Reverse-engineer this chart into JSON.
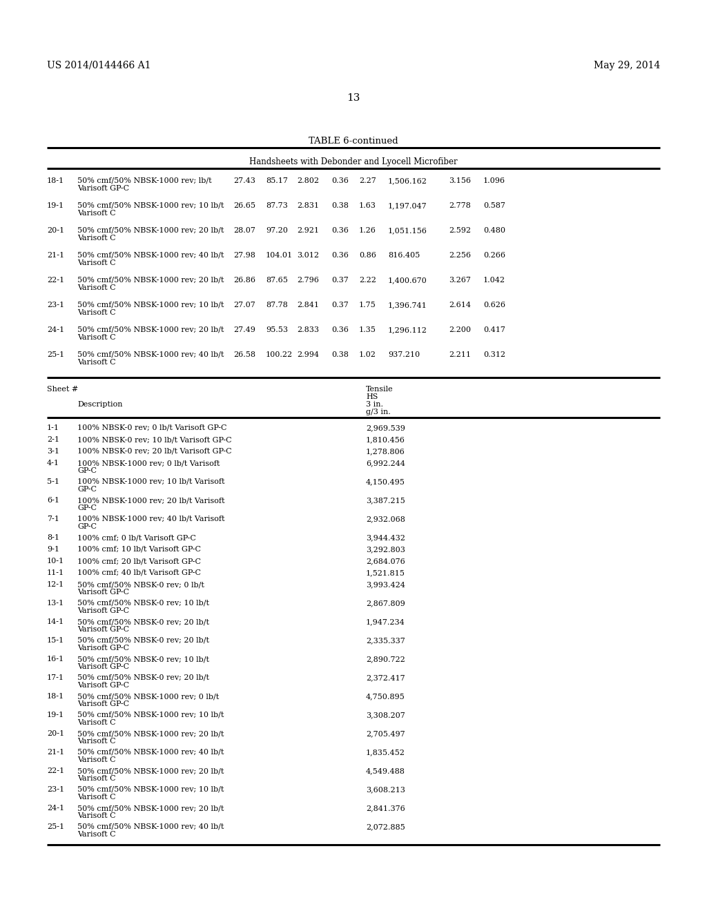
{
  "header_left": "US 2014/0144466 A1",
  "header_right": "May 29, 2014",
  "page_number": "13",
  "table_title": "TABLE 6-continued",
  "section_header": "Handsheets with Debonder and Lyocell Microfiber",
  "top_table_rows": [
    {
      "sheet": "18-1",
      "desc_line1": "50% cmf/50% NBSK-1000 rev; lb/t",
      "desc_line2": "Varisoft GP-C",
      "v1": "27.43",
      "v2": "85.17",
      "v3": "2.802",
      "v4": "0.36",
      "v5": "2.27",
      "v6": "1,506.162",
      "v7": "3.156",
      "v8": "1.096"
    },
    {
      "sheet": "19-1",
      "desc_line1": "50% cmf/50% NBSK-1000 rev; 10 lb/t",
      "desc_line2": "Varisoft C",
      "v1": "26.65",
      "v2": "87.73",
      "v3": "2.831",
      "v4": "0.38",
      "v5": "1.63",
      "v6": "1,197.047",
      "v7": "2.778",
      "v8": "0.587"
    },
    {
      "sheet": "20-1",
      "desc_line1": "50% cmf/50% NBSK-1000 rev; 20 lb/t",
      "desc_line2": "Varisoft C",
      "v1": "28.07",
      "v2": "97.20",
      "v3": "2.921",
      "v4": "0.36",
      "v5": "1.26",
      "v6": "1,051.156",
      "v7": "2.592",
      "v8": "0.480"
    },
    {
      "sheet": "21-1",
      "desc_line1": "50% cmf/50% NBSK-1000 rev; 40 lb/t",
      "desc_line2": "Varisoft C",
      "v1": "27.98",
      "v2": "104.01",
      "v3": "3.012",
      "v4": "0.36",
      "v5": "0.86",
      "v6": "816.405",
      "v7": "2.256",
      "v8": "0.266"
    },
    {
      "sheet": "22-1",
      "desc_line1": "50% cmf/50% NBSK-1000 rev; 20 lb/t",
      "desc_line2": "Varisoft C",
      "v1": "26.86",
      "v2": "87.65",
      "v3": "2.796",
      "v4": "0.37",
      "v5": "2.22",
      "v6": "1,400.670",
      "v7": "3.267",
      "v8": "1.042"
    },
    {
      "sheet": "23-1",
      "desc_line1": "50% cmf/50% NBSK-1000 rev; 10 lb/t",
      "desc_line2": "Varisoft C",
      "v1": "27.07",
      "v2": "87.78",
      "v3": "2.841",
      "v4": "0.37",
      "v5": "1.75",
      "v6": "1,396.741",
      "v7": "2.614",
      "v8": "0.626"
    },
    {
      "sheet": "24-1",
      "desc_line1": "50% cmf/50% NBSK-1000 rev; 20 lb/t",
      "desc_line2": "Varisoft C",
      "v1": "27.49",
      "v2": "95.53",
      "v3": "2.833",
      "v4": "0.36",
      "v5": "1.35",
      "v6": "1,296.112",
      "v7": "2.200",
      "v8": "0.417"
    },
    {
      "sheet": "25-1",
      "desc_line1": "50% cmf/50% NBSK-1000 rev; 40 lb/t",
      "desc_line2": "Varisoft C",
      "v1": "26.58",
      "v2": "100.22",
      "v3": "2.994",
      "v4": "0.38",
      "v5": "1.02",
      "v6": "937.210",
      "v7": "2.211",
      "v8": "0.312"
    }
  ],
  "bottom_table_rows": [
    {
      "sheet": "1-1",
      "desc_line1": "100% NBSK-0 rev; 0 lb/t Varisoft GP-C",
      "desc_line2": "",
      "v1": "2,969.539"
    },
    {
      "sheet": "2-1",
      "desc_line1": "100% NBSK-0 rev; 10 lb/t Varisoft GP-C",
      "desc_line2": "",
      "v1": "1,810.456"
    },
    {
      "sheet": "3-1",
      "desc_line1": "100% NBSK-0 rev; 20 lb/t Varisoft GP-C",
      "desc_line2": "",
      "v1": "1,278.806"
    },
    {
      "sheet": "4-1",
      "desc_line1": "100% NBSK-1000 rev; 0 lb/t Varisoft",
      "desc_line2": "GP-C",
      "v1": "6,992.244"
    },
    {
      "sheet": "5-1",
      "desc_line1": "100% NBSK-1000 rev; 10 lb/t Varisoft",
      "desc_line2": "GP-C",
      "v1": "4,150.495"
    },
    {
      "sheet": "6-1",
      "desc_line1": "100% NBSK-1000 rev; 20 lb/t Varisoft",
      "desc_line2": "GP-C",
      "v1": "3,387.215"
    },
    {
      "sheet": "7-1",
      "desc_line1": "100% NBSK-1000 rev; 40 lb/t Varisoft",
      "desc_line2": "GP-C",
      "v1": "2,932.068"
    },
    {
      "sheet": "8-1",
      "desc_line1": "100% cmf; 0 lb/t Varisoft GP-C",
      "desc_line2": "",
      "v1": "3,944.432"
    },
    {
      "sheet": "9-1",
      "desc_line1": "100% cmf; 10 lb/t Varisoft GP-C",
      "desc_line2": "",
      "v1": "3,292.803"
    },
    {
      "sheet": "10-1",
      "desc_line1": "100% cmf; 20 lb/t Varisoft GP-C",
      "desc_line2": "",
      "v1": "2,684.076"
    },
    {
      "sheet": "11-1",
      "desc_line1": "100% cmf; 40 lb/t Varisoft GP-C",
      "desc_line2": "",
      "v1": "1,521.815"
    },
    {
      "sheet": "12-1",
      "desc_line1": "50% cmf/50% NBSK-0 rev; 0 lb/t",
      "desc_line2": "Varisoft GP-C",
      "v1": "3,993.424"
    },
    {
      "sheet": "13-1",
      "desc_line1": "50% cmf/50% NBSK-0 rev; 10 lb/t",
      "desc_line2": "Varisoft GP-C",
      "v1": "2,867.809"
    },
    {
      "sheet": "14-1",
      "desc_line1": "50% cmf/50% NBSK-0 rev; 20 lb/t",
      "desc_line2": "Varisoft GP-C",
      "v1": "1,947.234"
    },
    {
      "sheet": "15-1",
      "desc_line1": "50% cmf/50% NBSK-0 rev; 20 lb/t",
      "desc_line2": "Varisoft GP-C",
      "v1": "2,335.337"
    },
    {
      "sheet": "16-1",
      "desc_line1": "50% cmf/50% NBSK-0 rev; 10 lb/t",
      "desc_line2": "Varisoft GP-C",
      "v1": "2,890.722"
    },
    {
      "sheet": "17-1",
      "desc_line1": "50% cmf/50% NBSK-0 rev; 20 lb/t",
      "desc_line2": "Varisoft GP-C",
      "v1": "2,372.417"
    },
    {
      "sheet": "18-1",
      "desc_line1": "50% cmf/50% NBSK-1000 rev; 0 lb/t",
      "desc_line2": "Varisoft GP-C",
      "v1": "4,750.895"
    },
    {
      "sheet": "19-1",
      "desc_line1": "50% cmf/50% NBSK-1000 rev; 10 lb/t",
      "desc_line2": "Varisoft C",
      "v1": "3,308.207"
    },
    {
      "sheet": "20-1",
      "desc_line1": "50% cmf/50% NBSK-1000 rev; 20 lb/t",
      "desc_line2": "Varisoft C",
      "v1": "2,705.497"
    },
    {
      "sheet": "21-1",
      "desc_line1": "50% cmf/50% NBSK-1000 rev; 40 lb/t",
      "desc_line2": "Varisoft C",
      "v1": "1,835.452"
    },
    {
      "sheet": "22-1",
      "desc_line1": "50% cmf/50% NBSK-1000 rev; 20 lb/t",
      "desc_line2": "Varisoft C",
      "v1": "4,549.488"
    },
    {
      "sheet": "23-1",
      "desc_line1": "50% cmf/50% NBSK-1000 rev; 10 lb/t",
      "desc_line2": "Varisoft C",
      "v1": "3,608.213"
    },
    {
      "sheet": "24-1",
      "desc_line1": "50% cmf/50% NBSK-1000 rev; 20 lb/t",
      "desc_line2": "Varisoft C",
      "v1": "2,841.376"
    },
    {
      "sheet": "25-1",
      "desc_line1": "50% cmf/50% NBSK-1000 rev; 40 lb/t",
      "desc_line2": "Varisoft C",
      "v1": "2,072.885"
    }
  ],
  "bg_color": "#ffffff",
  "text_color": "#000000"
}
